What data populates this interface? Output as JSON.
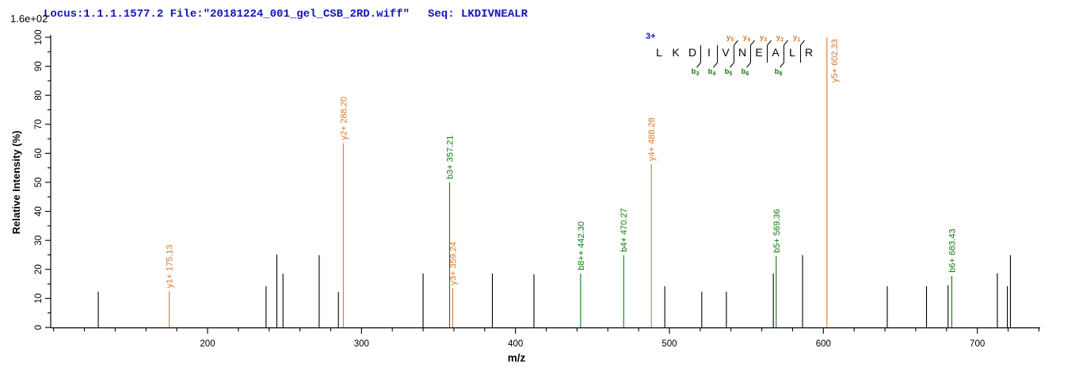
{
  "header": {
    "locus_file": "Locus:1.1.1.1577.2 File:\"20181224_001_gel_CSB_2RD.wiff\"",
    "seq_label": "Seq:",
    "sequence": "LKDIVNEALR",
    "seq_full": "Seq: LKDIVNEALR",
    "base_peak_intensity": "1.6e+02"
  },
  "colors": {
    "header_blue": "#1313BD",
    "y_ion_orange": "#D9772E",
    "b_ion_green": "#0E7D0E",
    "unassigned_black": "#000000"
  },
  "fragment_map": {
    "charge_label": "3+",
    "residues": [
      "L",
      "K",
      "D",
      "I",
      "V",
      "N",
      "E",
      "A",
      "L",
      "R"
    ],
    "marks": [
      {
        "gap": 2,
        "b": "b3"
      },
      {
        "gap": 3,
        "b": "b4"
      },
      {
        "gap": 4,
        "b": "b5",
        "y": "y5"
      },
      {
        "gap": 5,
        "b": "b6",
        "y": "y4"
      },
      {
        "gap": 6,
        "y": "y3"
      },
      {
        "gap": 7,
        "b": "b8",
        "y": "y2"
      },
      {
        "gap": 8,
        "y": "y1"
      }
    ]
  },
  "chart_data": {
    "type": "bar",
    "variant": "centroided MS/MS stick spectrum",
    "title": "",
    "xlabel": "m/z",
    "ylabel": "Relative Intensity (%)",
    "xlim": [
      97,
      742
    ],
    "ylim": [
      0,
      100
    ],
    "x_tick_labels": [
      200,
      300,
      400,
      500,
      600,
      700
    ],
    "x_minor_step": 20,
    "y_tick_labels": [
      0,
      10,
      20,
      30,
      40,
      50,
      60,
      70,
      80,
      90,
      100
    ],
    "y_minor_step": 5,
    "grid": false,
    "legend": false,
    "base_peak_intensity_label": "1.6e+02",
    "series": [
      {
        "name": "unassigned",
        "color": "#000000",
        "points": [
          [
            129,
            12.3
          ],
          [
            238,
            14.2
          ],
          [
            245,
            25.1
          ],
          [
            249,
            18.5
          ],
          [
            272.5,
            24.9
          ],
          [
            285,
            12.3
          ],
          [
            340,
            18.6
          ],
          [
            385,
            18.6
          ],
          [
            412,
            18.3
          ],
          [
            497,
            14.2
          ],
          [
            521,
            12.3
          ],
          [
            537,
            12.3
          ],
          [
            567.5,
            18.6
          ],
          [
            586.5,
            24.9
          ],
          [
            641.5,
            14.2
          ],
          [
            667,
            14.2
          ],
          [
            681,
            14.5
          ],
          [
            713,
            18.7
          ],
          [
            719.5,
            14.2
          ],
          [
            721.5,
            24.9
          ]
        ]
      },
      {
        "name": "y-ions",
        "color": "#D9772E",
        "points": [
          {
            "mz": 175.13,
            "intensity": 12.5,
            "label": "y1+ 175.13"
          },
          {
            "mz": 288.2,
            "intensity": 63.5,
            "label": "y2+ 288.20"
          },
          {
            "mz": 359.24,
            "intensity": 13.5,
            "label": "y3+ 359.24"
          },
          {
            "mz": 488.28,
            "intensity": 56.3,
            "label": "y4+ 488.28"
          },
          {
            "mz": 602.33,
            "intensity": 100,
            "label": "y5+ 602.33"
          }
        ]
      },
      {
        "name": "b-ions",
        "color": "#0E7D0E",
        "points": [
          {
            "mz": 357.21,
            "intensity": 50,
            "label": "b3+ 357.21"
          },
          {
            "mz": 442.3,
            "intensity": 18.6,
            "label": "b8++ 442.30"
          },
          {
            "mz": 470.27,
            "intensity": 24.9,
            "label": "b4+ 470.27"
          },
          {
            "mz": 569.36,
            "intensity": 24.6,
            "label": "b5+ 569.36"
          },
          {
            "mz": 683.43,
            "intensity": 17.8,
            "label": "b6+ 683.43"
          }
        ]
      }
    ]
  }
}
